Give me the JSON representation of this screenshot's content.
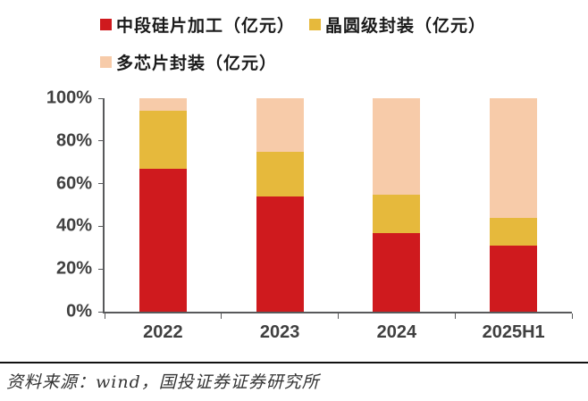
{
  "legend": {
    "items": [
      {
        "label": "中段硅片加工（亿元）",
        "color": "#CF1A1E"
      },
      {
        "label": "晶圆级封装（亿元）",
        "color": "#E6B93C"
      },
      {
        "label": "多芯片封装（亿元）",
        "color": "#F7CBA9"
      }
    ]
  },
  "chart_data": {
    "type": "bar",
    "stacked": true,
    "percent_stacked": true,
    "title": "",
    "xlabel": "",
    "ylabel": "",
    "categories": [
      "2022",
      "2023",
      "2024",
      "2025H1"
    ],
    "series": [
      {
        "name": "中段硅片加工（亿元）",
        "color": "#CF1A1E",
        "values": [
          67,
          54,
          37,
          31
        ]
      },
      {
        "name": "晶圆级封装（亿元）",
        "color": "#E6B93C",
        "values": [
          27,
          21,
          18,
          13
        ]
      },
      {
        "name": "多芯片封装（亿元）",
        "color": "#F7CBA9",
        "values": [
          6,
          25,
          45,
          56
        ]
      }
    ],
    "ylim": [
      0,
      100
    ],
    "y_ticks": [
      "0%",
      "20%",
      "40%",
      "60%",
      "80%",
      "100%"
    ],
    "grid": false,
    "legend_position": "top",
    "axis_color": "#58595B",
    "tick_label_color": "#404040"
  },
  "footer": {
    "source_text": "资料来源：wind，国投证券证券研究所"
  }
}
